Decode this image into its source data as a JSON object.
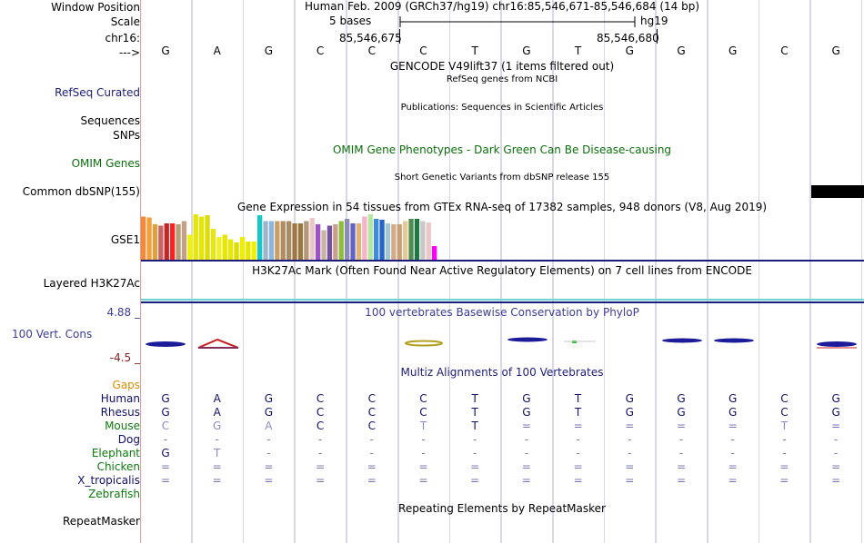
{
  "position": {
    "label": "Window Position",
    "text": "Human Feb. 2009 (GRCh37/hg19)   chr16:85,546,671-85,546,684 (14 bp)"
  },
  "scale": {
    "label": "Scale",
    "left": "5 bases",
    "right": "hg19"
  },
  "ruler": {
    "label": "chr16:",
    "tick1": "85,546,675",
    "tick2": "85,546,680"
  },
  "bases": {
    "label": "--->",
    "seq": [
      "G",
      "A",
      "G",
      "C",
      "C",
      "C",
      "T",
      "G",
      "T",
      "G",
      "G",
      "G",
      "C",
      "G"
    ]
  },
  "tracks": {
    "gencode": "GENCODE V49lift37 (1 items filtered out)",
    "refseq_title": "RefSeq genes from NCBI",
    "refseq_label": "RefSeq Curated",
    "pubs_title": "Publications: Sequences in Scientific Articles",
    "sequences_label": "Sequences",
    "snps_label": "SNPs",
    "omim_title": "OMIM Gene Phenotypes - Dark Green Can Be Disease-causing",
    "omim_label": "OMIM Genes",
    "dbsnp_title": "Short Genetic Variants from dbSNP release 155",
    "dbsnp_label": "Common dbSNP(155)",
    "gtex_title": "Gene Expression in 54 tissues from GTEx RNA-seq of 17382 samples, 948 donors (V8, Aug 2019)",
    "gtex_label": "GSE1",
    "h3k_title": "H3K27Ac Mark (Often Found Near Active Regulatory Elements) on 7 cell lines from ENCODE",
    "h3k_label": "Layered H3K27Ac",
    "phylop_max": "4.88 _",
    "phylop_title": "100 vertebrates Basewise Conservation by PhyloP",
    "phylop_label": "100 Vert. Cons",
    "phylop_min": "-4.5 _",
    "multiz_title": "Multiz Alignments of 100 Vertebrates",
    "gaps_label": "Gaps",
    "rmsk_title": "Repeating Elements by RepeatMasker",
    "rmsk_label": "RepeatMasker"
  },
  "colors": {
    "navy": "#1c1c7a",
    "omim_green": "#0b6f0b",
    "gaps_orange": "#e08a00",
    "species_green": "#0d7a0d",
    "species_navy": "#10106a",
    "cons_blue": "#3c3c96",
    "cons_red": "#8a1c1c"
  },
  "gtex_bars": [
    {
      "v": 0.95,
      "c": "#f28a3a"
    },
    {
      "v": 0.93,
      "c": "#f2a03a"
    },
    {
      "v": 0.78,
      "c": "#e0a040"
    },
    {
      "v": 0.75,
      "c": "#c86464"
    },
    {
      "v": 0.8,
      "c": "#c02828"
    },
    {
      "v": 0.8,
      "c": "#ff2020"
    },
    {
      "v": 0.78,
      "c": "#b4a078"
    },
    {
      "v": 0.85,
      "c": "#c4a086"
    },
    {
      "v": 0.55,
      "c": "#f0f00a"
    },
    {
      "v": 1.0,
      "c": "#e6e60a"
    },
    {
      "v": 0.95,
      "c": "#e6e600"
    },
    {
      "v": 0.98,
      "c": "#dcdc0a"
    },
    {
      "v": 0.68,
      "c": "#e6e614"
    },
    {
      "v": 0.5,
      "c": "#f0f028"
    },
    {
      "v": 0.55,
      "c": "#e6e600"
    },
    {
      "v": 0.45,
      "c": "#e8e800"
    },
    {
      "v": 0.38,
      "c": "#dddd00"
    },
    {
      "v": 0.5,
      "c": "#eeee00"
    },
    {
      "v": 0.4,
      "c": "#e6e600"
    },
    {
      "v": 0.4,
      "c": "#f0f000"
    },
    {
      "v": 0.98,
      "c": "#14c8c8"
    },
    {
      "v": 0.85,
      "c": "#a0b4c8"
    },
    {
      "v": 0.85,
      "c": "#8cb4dc"
    },
    {
      "v": 0.85,
      "c": "#c8a064"
    },
    {
      "v": 0.85,
      "c": "#b48c64"
    },
    {
      "v": 0.85,
      "c": "#aa8c64"
    },
    {
      "v": 0.8,
      "c": "#a07848"
    },
    {
      "v": 0.8,
      "c": "#96783c"
    },
    {
      "v": 0.85,
      "c": "#b49678"
    },
    {
      "v": 0.92,
      "c": "#ebc8c8"
    },
    {
      "v": 0.78,
      "c": "#a050c8"
    },
    {
      "v": 0.65,
      "c": "#c8b4a0"
    },
    {
      "v": 0.75,
      "c": "#7850a0"
    },
    {
      "v": 0.78,
      "c": "#c8a08c"
    },
    {
      "v": 0.85,
      "c": "#8cbe3c"
    },
    {
      "v": 0.9,
      "c": "#8c8cb4"
    },
    {
      "v": 0.8,
      "c": "#6464c8"
    },
    {
      "v": 0.8,
      "c": "#e0b478"
    },
    {
      "v": 0.95,
      "c": "#f5b4c8"
    },
    {
      "v": 1.0,
      "c": "#b4e6a0"
    },
    {
      "v": 0.9,
      "c": "#3c8cdc"
    },
    {
      "v": 0.88,
      "c": "#2864c8"
    },
    {
      "v": 0.8,
      "c": "#a0c8d2"
    },
    {
      "v": 0.78,
      "c": "#d2aa8c"
    },
    {
      "v": 0.78,
      "c": "#c8a078"
    },
    {
      "v": 0.85,
      "c": "#e6c896"
    },
    {
      "v": 0.9,
      "c": "#508c50"
    },
    {
      "v": 0.9,
      "c": "#1e7846"
    },
    {
      "v": 0.85,
      "c": "#c8c8c8"
    },
    {
      "v": 0.82,
      "c": "#ebc8c8"
    },
    {
      "v": 0.3,
      "c": "#ff00ff"
    }
  ],
  "species": [
    {
      "name": "Human",
      "color": "#10106a",
      "row": [
        "G",
        "A",
        "G",
        "C",
        "C",
        "C",
        "T",
        "G",
        "T",
        "G",
        "G",
        "G",
        "C",
        "G"
      ]
    },
    {
      "name": "Rhesus",
      "color": "#10106a",
      "row": [
        "G",
        "A",
        "G",
        "C",
        "C",
        "C",
        "T",
        "G",
        "T",
        "G",
        "G",
        "G",
        "C",
        "G"
      ]
    },
    {
      "name": "Mouse",
      "color": "#0d7a0d",
      "row": [
        "C",
        "G",
        "A",
        "C",
        "C",
        "T",
        "T",
        "=",
        "=",
        "=",
        "=",
        "=",
        "T",
        "="
      ]
    },
    {
      "name": "Dog",
      "color": "#10106a",
      "row": [
        "-",
        "-",
        "-",
        "-",
        "-",
        "-",
        "-",
        "-",
        "-",
        "-",
        "-",
        "-",
        "-",
        "-"
      ]
    },
    {
      "name": "Elephant",
      "color": "#0d7a0d",
      "row": [
        "G",
        "T",
        "-",
        "-",
        "-",
        "-",
        "-",
        "-",
        "-",
        "-",
        "-",
        "-",
        "-",
        "-"
      ]
    },
    {
      "name": "Chicken",
      "color": "#0d7a0d",
      "row": [
        "=",
        "=",
        "=",
        "=",
        "=",
        "=",
        "=",
        "=",
        "=",
        "=",
        "=",
        "=",
        "=",
        "="
      ]
    },
    {
      "name": "X_tropicalis",
      "color": "#10106a",
      "row": [
        "=",
        "=",
        "=",
        "=",
        "=",
        "=",
        "=",
        "=",
        "=",
        "=",
        "=",
        "=",
        "=",
        "="
      ]
    },
    {
      "name": "Zebrafish",
      "color": "#0d7a0d",
      "row": [
        "",
        "",
        "",
        "",
        "",
        "",
        "",
        "",
        "",
        "",
        "",
        "",
        "",
        ""
      ]
    }
  ]
}
